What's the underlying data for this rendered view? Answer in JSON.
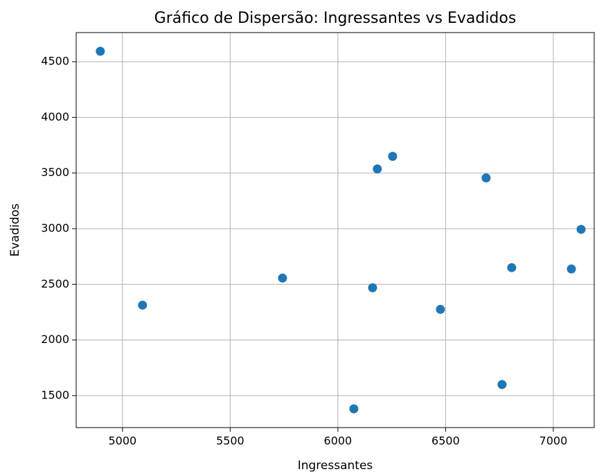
{
  "chart_data": {
    "type": "scatter",
    "title": "Gráfico de Dispersão: Ingressantes vs Evadidos",
    "xlabel": "Ingressantes",
    "ylabel": "Evadidos",
    "series": [
      {
        "name": "Evadidos",
        "color": "#1f77b4",
        "x": [
          4897,
          5093,
          5743,
          6074,
          6161,
          6183,
          6254,
          6476,
          6688,
          6762,
          6807,
          7084,
          7129
        ],
        "values": [
          4594,
          2313,
          2556,
          1381,
          2469,
          3537,
          3650,
          2275,
          3456,
          1600,
          2650,
          2638,
          2994
        ]
      }
    ],
    "xlim": [
      4785,
      7190
    ],
    "xticks": [
      5000,
      5500,
      6000,
      6500,
      7000
    ],
    "ylim": [
      1213,
      4762
    ],
    "yticks": [
      1500,
      2000,
      2500,
      3000,
      3500,
      4000,
      4500
    ],
    "grid": true
  }
}
